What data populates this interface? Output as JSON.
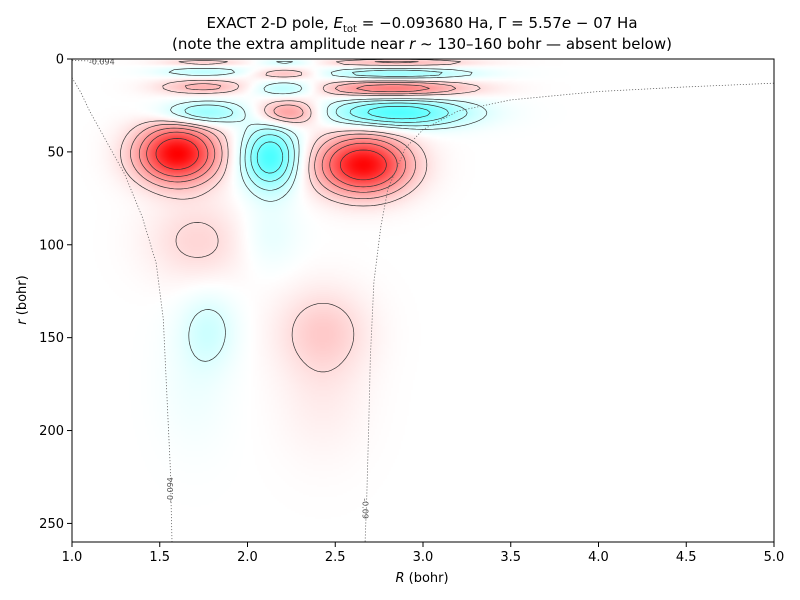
{
  "chart_data": {
    "type": "heatmap",
    "title": "EXACT 2-D pole, E_tot = −0.093680 Ha, Γ = 5.57e − 07 Ha",
    "title_parts": {
      "prefix": "EXACT 2-D pole, ",
      "e_symbol": "E",
      "e_sub": "tot",
      "e_value": " = −0.093680 Ha, Γ = 5.57",
      "e_letter": "e",
      "gamma_rest": " − 07 Ha"
    },
    "subtitle": "(note the extra amplitude near r ∼ 130–160 bohr — absent below)",
    "subtitle_parts": {
      "before": "(note the extra amplitude near ",
      "r": "r",
      "after": " ∼ 130–160 bohr — absent below)"
    },
    "xlabel": "R (bohr)",
    "xlabel_parts": {
      "symbol": "R",
      "unit": " (bohr)"
    },
    "ylabel": "r (bohr)",
    "ylabel_parts": {
      "symbol": "r",
      "unit": " (bohr)"
    },
    "xlim": [
      1.0,
      5.0
    ],
    "ylim": [
      260,
      0
    ],
    "y_inverted": true,
    "x_ticks": [
      1.0,
      1.5,
      2.0,
      2.5,
      3.0,
      3.5,
      4.0,
      4.5,
      5.0
    ],
    "x_tick_labels": [
      "1.0",
      "1.5",
      "2.0",
      "2.5",
      "3.0",
      "3.5",
      "4.0",
      "4.5",
      "5.0"
    ],
    "y_ticks": [
      0,
      50,
      100,
      150,
      200,
      250
    ],
    "y_tick_labels": [
      "0",
      "50",
      "100",
      "150",
      "200",
      "250"
    ],
    "grid": false,
    "colormap": {
      "positive": "#ff0000",
      "negative": "#00ffff",
      "zero": "#ffffff",
      "contour_line": "#333333"
    },
    "lobes": [
      {
        "R": 1.6,
        "r": 51,
        "sR": 0.16,
        "sr": 11,
        "amp": 1.0
      },
      {
        "R": 2.13,
        "r": 53,
        "sR": 0.11,
        "sr": 12,
        "amp": -0.72
      },
      {
        "R": 2.66,
        "r": 57,
        "sR": 0.18,
        "sr": 11,
        "amp": 0.98
      },
      {
        "R": 1.75,
        "r": 29,
        "sR": 0.17,
        "sr": 4.5,
        "amp": -0.45
      },
      {
        "R": 2.23,
        "r": 29,
        "sR": 0.13,
        "sr": 5,
        "amp": 0.48
      },
      {
        "R": 2.85,
        "r": 29,
        "sR": 0.28,
        "sr": 5.5,
        "amp": -0.7
      },
      {
        "R": 1.75,
        "r": 15,
        "sR": 0.18,
        "sr": 3,
        "amp": 0.3
      },
      {
        "R": 2.22,
        "r": 16,
        "sR": 0.13,
        "sr": 3,
        "amp": -0.33
      },
      {
        "R": 2.83,
        "r": 16,
        "sR": 0.3,
        "sr": 3.2,
        "amp": 0.55
      },
      {
        "R": 1.75,
        "r": 7,
        "sR": 0.18,
        "sr": 2,
        "amp": -0.25
      },
      {
        "R": 2.22,
        "r": 8,
        "sR": 0.13,
        "sr": 2,
        "amp": 0.28
      },
      {
        "R": 2.85,
        "r": 8,
        "sR": 0.3,
        "sr": 2.2,
        "amp": -0.4
      },
      {
        "R": 1.75,
        "r": 2,
        "sR": 0.18,
        "sr": 1.3,
        "amp": 0.2
      },
      {
        "R": 2.22,
        "r": 2,
        "sR": 0.12,
        "sr": 1.3,
        "amp": -0.2
      },
      {
        "R": 2.85,
        "r": 2,
        "sR": 0.3,
        "sr": 1.4,
        "amp": 0.3
      },
      {
        "R": 1.72,
        "r": 98,
        "sR": 0.2,
        "sr": 15,
        "amp": 0.16
      },
      {
        "R": 2.12,
        "r": 95,
        "sR": 0.12,
        "sr": 13,
        "amp": -0.1
      },
      {
        "R": 1.78,
        "r": 146,
        "sR": 0.11,
        "sr": 14,
        "amp": -0.17
      },
      {
        "R": 2.43,
        "r": 146,
        "sR": 0.18,
        "sr": 16,
        "amp": 0.18
      },
      {
        "R": 1.7,
        "r": 175,
        "sR": 0.14,
        "sr": 25,
        "amp": -0.06
      },
      {
        "R": 2.43,
        "r": 180,
        "sR": 0.18,
        "sr": 25,
        "amp": 0.07
      }
    ],
    "contour_levels": [
      -0.55,
      -0.4,
      -0.25,
      -0.13,
      0.13,
      0.25,
      0.4,
      0.55,
      0.75
    ],
    "potential_contours": [
      {
        "label": "-0.094",
        "points": [
          [
            1.0,
            10
          ],
          [
            1.05,
            18
          ],
          [
            1.1,
            28
          ],
          [
            1.2,
            45
          ],
          [
            1.3,
            62
          ],
          [
            1.4,
            85
          ],
          [
            1.48,
            110
          ],
          [
            1.52,
            140
          ],
          [
            1.54,
            180
          ],
          [
            1.56,
            220
          ],
          [
            1.57,
            260
          ]
        ],
        "label_at": [
          1.56,
          232
        ]
      },
      {
        "label": "-0.094",
        "points": [
          [
            1.0,
            0.8
          ],
          [
            1.1,
            1.0
          ],
          [
            1.2,
            1.3
          ]
        ],
        "label_at": [
          1.17,
          1
        ]
      },
      {
        "label": "-0.09",
        "points": [
          [
            5.0,
            13
          ],
          [
            4.5,
            15
          ],
          [
            4.0,
            17.5
          ],
          [
            3.5,
            22
          ],
          [
            3.2,
            28
          ],
          [
            3.0,
            38
          ],
          [
            2.9,
            48
          ],
          [
            2.8,
            70
          ],
          [
            2.76,
            90
          ],
          [
            2.72,
            120
          ],
          [
            2.7,
            160
          ],
          [
            2.69,
            200
          ],
          [
            2.68,
            235
          ],
          [
            2.67,
            260
          ]
        ],
        "label_at": [
          2.67,
          242
        ]
      }
    ]
  }
}
